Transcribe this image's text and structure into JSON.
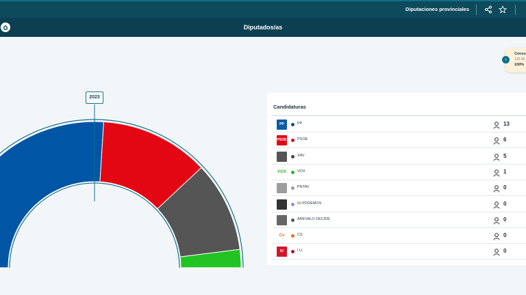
{
  "header": {
    "section_title": "Diputaciones provinciales",
    "share_icon": "share-icon",
    "star_icon": "star-icon"
  },
  "subheader": {
    "title": "Diputados/as",
    "home_icon": "home-icon"
  },
  "censo_card": {
    "label": "Censo",
    "value": "129.09",
    "percent": "100%"
  },
  "chart_data": {
    "type": "pie",
    "variant": "hemicycle",
    "year": "2023",
    "categories": [
      "PP",
      "PSOE",
      "XAV",
      "VOX"
    ],
    "values": [
      13,
      6,
      5,
      1
    ],
    "colors": [
      "#0055a4",
      "#e30613",
      "#555555",
      "#21c423"
    ]
  },
  "panel": {
    "title": "Candidaturas",
    "rows": [
      {
        "name": "PP",
        "seats": "13",
        "color": "#0b4f9e",
        "logo_color": "#0b5aa8",
        "logo_text": "PP"
      },
      {
        "name": "PSOE",
        "seats": "6",
        "color": "#e30613",
        "logo_color": "#e30613",
        "logo_text": "PSOE"
      },
      {
        "name": "XAV",
        "seats": "5",
        "color": "#444444",
        "logo_color": "#555555",
        "logo_text": ""
      },
      {
        "name": "VOX",
        "seats": "1",
        "color": "#2bb32b",
        "logo_color": "#ffffff",
        "logo_text": "VOX"
      },
      {
        "name": "PNTAV",
        "seats": "0",
        "color": "#9a9a9a",
        "logo_color": "#9d9d9d",
        "logo_text": ""
      },
      {
        "name": "IU-PODEMOS",
        "seats": "0",
        "color": "#8b8fd6",
        "logo_color": "#333333",
        "logo_text": ""
      },
      {
        "name": "AREVALO DECIDE",
        "seats": "0",
        "color": "#555555",
        "logo_color": "#666666",
        "logo_text": ""
      },
      {
        "name": "CS",
        "seats": "0",
        "color": "#f26c1d",
        "logo_color": "#ffffff",
        "logo_text": "Cs"
      },
      {
        "name": "I.U.",
        "seats": "0",
        "color": "#b8102a",
        "logo_color": "#d1172b",
        "logo_text": "IU"
      }
    ]
  }
}
